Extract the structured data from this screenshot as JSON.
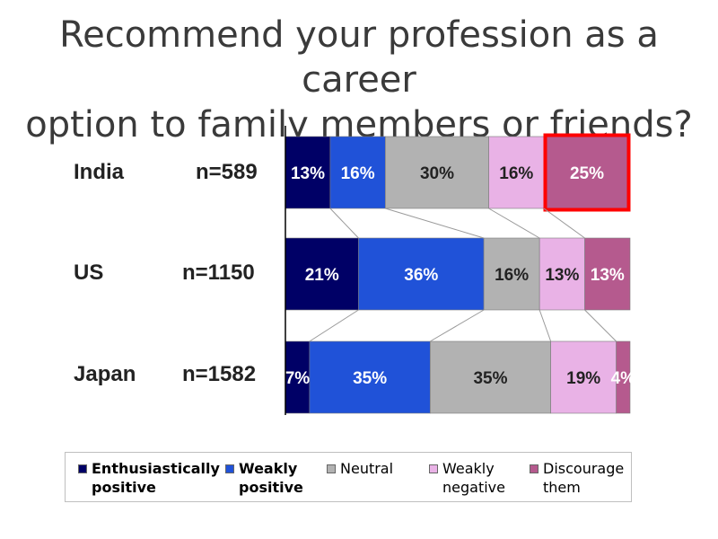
{
  "title_line1": "Recommend your profession as a career",
  "title_line2": "option to family members or friends?",
  "chart_data": {
    "type": "bar",
    "orientation": "horizontal",
    "stacked": true,
    "percent_stacked": true,
    "categories": [
      "India",
      "US",
      "Japan"
    ],
    "sample_sizes": [
      "n=589",
      "n=1150",
      "n=1582"
    ],
    "series": [
      {
        "name": "Enthusiastically positive",
        "color": "#000066",
        "label_color": "#ffffff",
        "values": [
          13,
          21,
          7
        ]
      },
      {
        "name": "Weakly positive",
        "color": "#2052d8",
        "label_color": "#ffffff",
        "values": [
          16,
          36,
          35
        ]
      },
      {
        "name": "Neutral",
        "color": "#b2b2b2",
        "label_color": "#222222",
        "values": [
          30,
          16,
          35
        ]
      },
      {
        "name": "Weakly negative",
        "color": "#e9b2e6",
        "label_color": "#222222",
        "values": [
          16,
          13,
          19
        ]
      },
      {
        "name": "Discourage them",
        "color": "#b55a8e",
        "label_color": "#ffffff",
        "values": [
          25,
          13,
          4
        ]
      }
    ],
    "data_labels": [
      [
        "13%",
        "16%",
        "30%",
        "16%",
        "25%"
      ],
      [
        "21%",
        "36%",
        "16%",
        "13%",
        "13%"
      ],
      [
        "7%",
        "35%",
        "35%",
        "19%",
        "4%"
      ]
    ],
    "highlight": {
      "category": "India",
      "series": "Discourage them",
      "color": "#ff0000"
    },
    "legend_position": "bottom"
  },
  "legend": [
    {
      "line1": "Enthusiastically",
      "line2": "positive",
      "bold": true
    },
    {
      "line1": "Weakly",
      "line2": "positive",
      "bold": true
    },
    {
      "line1": "Neutral",
      "line2": "",
      "bold": false
    },
    {
      "line1": "Weakly",
      "line2": "negative",
      "bold": false
    },
    {
      "line1": "Discourage",
      "line2": "them",
      "bold": false
    }
  ]
}
